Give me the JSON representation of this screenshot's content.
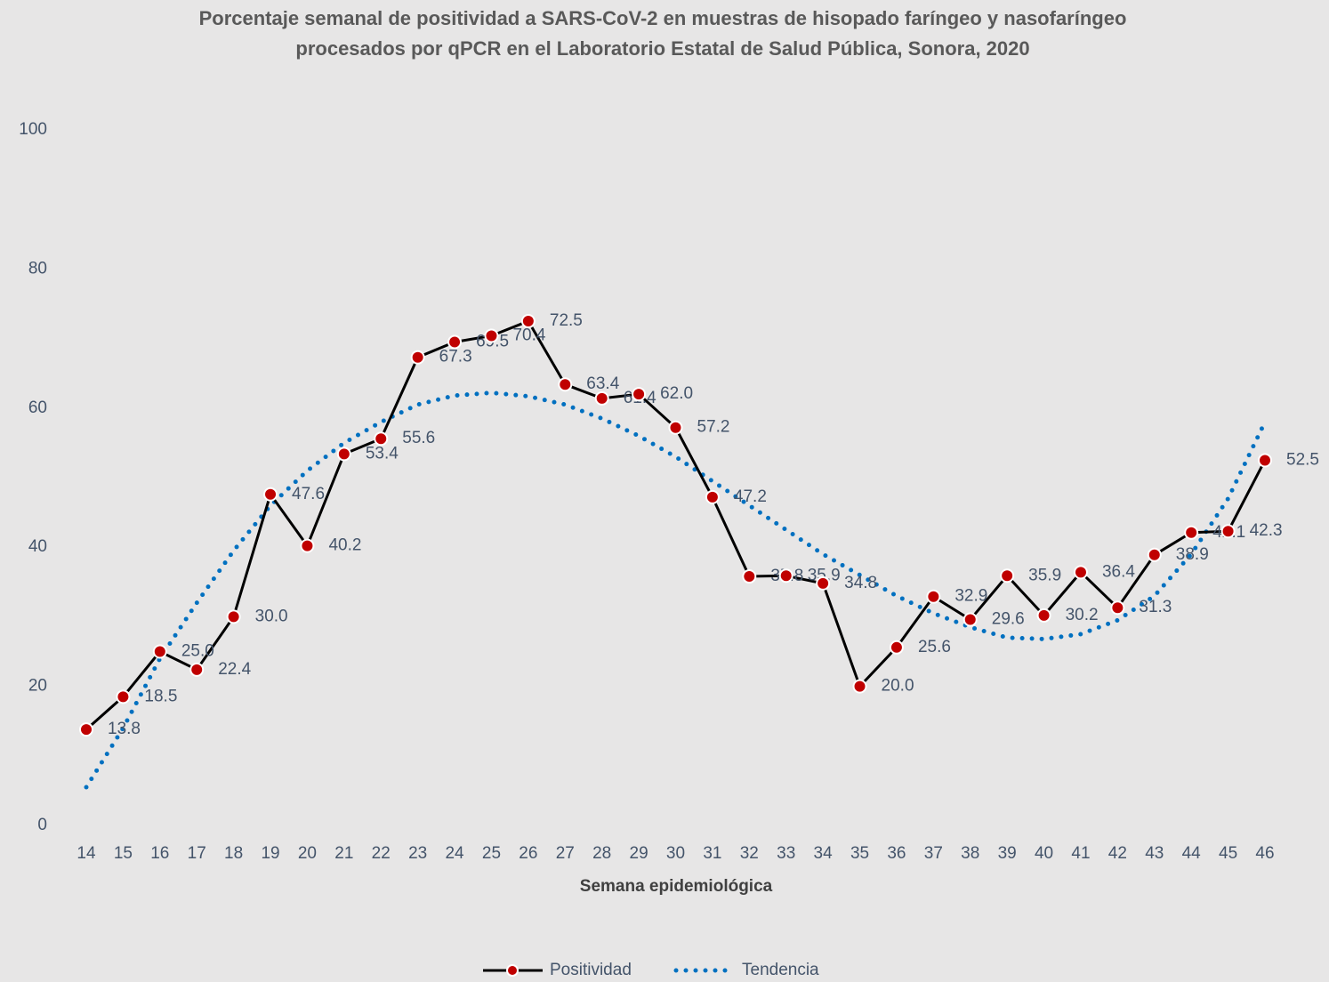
{
  "chart_data": {
    "type": "line",
    "title": "Porcentaje semanal de positividad a SARS-CoV-2 en muestras de hisopado faríngeo y nasofaríngeo procesados por qPCR en el Laboratorio Estatal de Salud Pública, Sonora, 2020",
    "x_label": "Semana epidemiológica",
    "categories": [
      "14",
      "15",
      "16",
      "17",
      "18",
      "19",
      "20",
      "21",
      "22",
      "23",
      "24",
      "25",
      "26",
      "27",
      "28",
      "29",
      "30",
      "31",
      "32",
      "33",
      "34",
      "35",
      "36",
      "37",
      "38",
      "39",
      "40",
      "41",
      "42",
      "43",
      "44",
      "45",
      "46"
    ],
    "ylim": [
      0,
      100
    ],
    "yticks": [
      0,
      20,
      40,
      60,
      80,
      100
    ],
    "grid": false,
    "legend": "bottom",
    "series": [
      {
        "name": "Positividad",
        "color": "#000000",
        "marker_color": "#c00000",
        "values": [
          13.8,
          18.5,
          25.0,
          22.4,
          30.0,
          47.6,
          40.2,
          53.4,
          55.6,
          67.3,
          69.5,
          70.4,
          72.5,
          63.4,
          61.4,
          62.0,
          57.2,
          47.2,
          35.8,
          35.9,
          34.8,
          20.0,
          25.6,
          32.9,
          29.6,
          35.9,
          30.2,
          36.4,
          31.3,
          38.9,
          42.1,
          42.3,
          52.5
        ],
        "value_labels": [
          "13.8",
          "18.5",
          "25.0",
          "22.4",
          "30.0",
          "47.6",
          "40.2",
          "53.4",
          "55.6",
          "67.3",
          "69.5",
          "70.4",
          "72.5",
          "63.4",
          "61.4",
          "62.0",
          "57.2",
          "47.2",
          "35.8",
          "35.9",
          "34.8",
          "20.0",
          "25.6",
          "32.9",
          "29.6",
          "35.9",
          "30.2",
          "36.4",
          "31.3",
          "38.9",
          "42.1",
          "42.3",
          "52.5"
        ]
      },
      {
        "name": "Tendencia",
        "color": "#0070c0",
        "dotted": true,
        "values": [
          5.5,
          14,
          24,
          32,
          39.5,
          46,
          51,
          55,
          58,
          60.5,
          61.8,
          62.2,
          61.7,
          60.5,
          58.5,
          56,
          53,
          49.5,
          46,
          42.5,
          39,
          36,
          33,
          30.5,
          28.5,
          27,
          26.8,
          27.5,
          29.5,
          33,
          39,
          47,
          58
        ]
      }
    ]
  }
}
